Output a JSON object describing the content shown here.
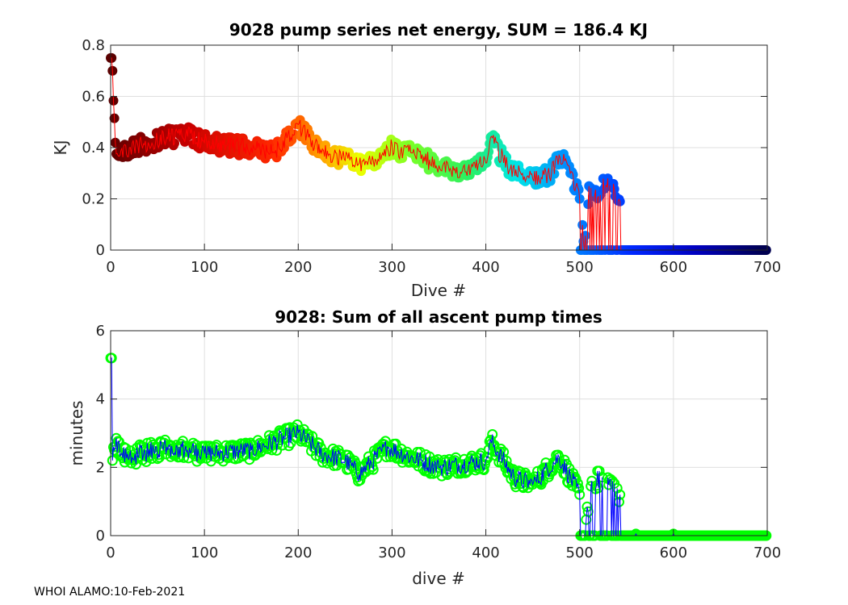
{
  "footer": "WHOI ALAMO:10-Feb-2021",
  "chart_data": [
    {
      "type": "scatter",
      "title": "9028 pump series net energy, SUM = 186.4 KJ",
      "xlabel": "Dive #",
      "ylabel": "KJ",
      "xlim": [
        0,
        700
      ],
      "ylim": [
        0,
        0.8
      ],
      "xticks": [
        "0",
        "100",
        "200",
        "300",
        "400",
        "500",
        "600",
        "700"
      ],
      "yticks": [
        "0",
        "0.2",
        "0.4",
        "0.6",
        "0.8"
      ],
      "grid": true,
      "marker": "filled circle colored by dive number (dark red to red, orange, yellow, green, cyan, blue, dark navy)",
      "line_color": "#ff0000",
      "sample_points": {
        "x": [
          1,
          2,
          5,
          10,
          20,
          40,
          60,
          80,
          100,
          120,
          150,
          175,
          200,
          225,
          250,
          265,
          280,
          295,
          320,
          350,
          375,
          400,
          405,
          425,
          450,
          470,
          478,
          490,
          500,
          505,
          510,
          520,
          530,
          543,
          560,
          600,
          650,
          699
        ],
        "y": [
          0.75,
          0.7,
          0.42,
          0.37,
          0.4,
          0.42,
          0.44,
          0.45,
          0.42,
          0.41,
          0.4,
          0.38,
          0.49,
          0.38,
          0.35,
          0.34,
          0.35,
          0.4,
          0.38,
          0.33,
          0.31,
          0.34,
          0.44,
          0.31,
          0.28,
          0.3,
          0.37,
          0.3,
          0.2,
          0.0,
          0.25,
          0.21,
          0.28,
          0.19,
          0.0,
          0.0,
          0.0,
          0.0
        ]
      }
    },
    {
      "type": "scatter",
      "title": "9028: Sum of all ascent pump times",
      "xlabel": "dive #",
      "ylabel": "minutes",
      "xlim": [
        0,
        700
      ],
      "ylim": [
        0,
        6
      ],
      "xticks": [
        "0",
        "100",
        "200",
        "300",
        "400",
        "500",
        "600",
        "700"
      ],
      "yticks": [
        "0",
        "2",
        "4",
        "6"
      ],
      "grid": true,
      "marker": "open circle",
      "marker_color": "#00ff00",
      "line_color": "#0000ff",
      "sample_points": {
        "x": [
          1,
          2,
          5,
          20,
          60,
          100,
          150,
          200,
          225,
          250,
          265,
          295,
          320,
          350,
          400,
          405,
          430,
          450,
          478,
          500,
          505,
          513,
          530,
          543,
          560,
          600,
          650,
          699
        ],
        "y": [
          5.2,
          2.2,
          2.6,
          2.3,
          2.6,
          2.4,
          2.5,
          3.0,
          2.4,
          2.2,
          1.8,
          2.6,
          2.3,
          2.0,
          2.2,
          2.8,
          1.7,
          1.5,
          2.3,
          1.2,
          0.0,
          1.6,
          1.7,
          1.2,
          0.05,
          0.05,
          0.0,
          0.0
        ]
      }
    }
  ]
}
